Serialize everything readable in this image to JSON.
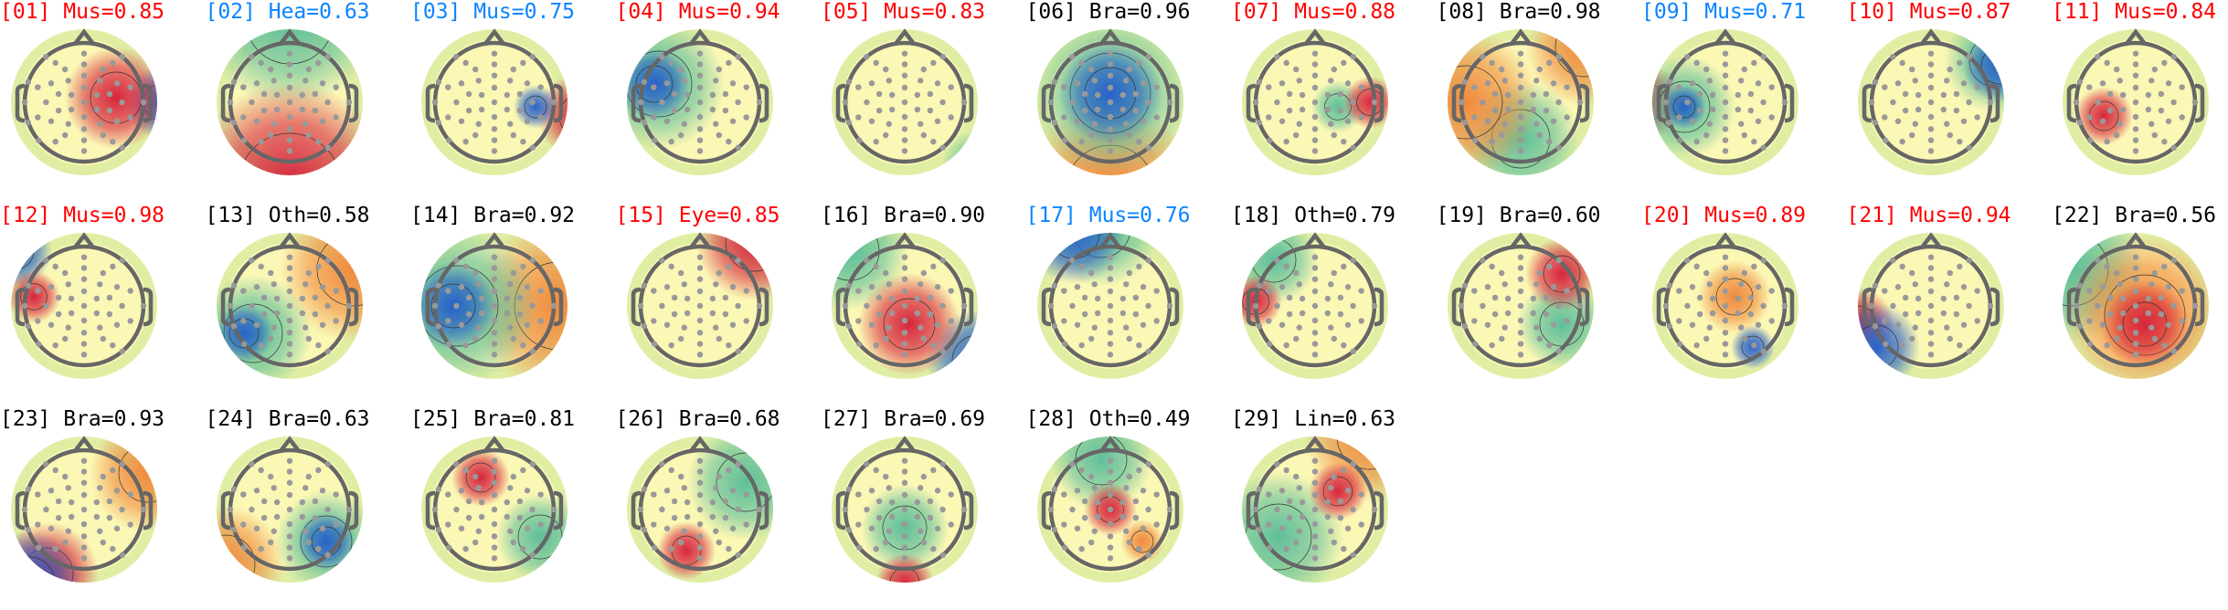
{
  "colors": {
    "red": "#ff0000",
    "blue": "#0a84ff",
    "black": "#000000"
  },
  "chart_data": {
    "type": "heatmap",
    "components": [
      {
        "title": "[01] Mus=0.85",
        "color": "red"
      },
      {
        "title": "[02] Hea=0.63",
        "color": "blue"
      },
      {
        "title": "[03] Mus=0.75",
        "color": "blue"
      },
      {
        "title": "[04] Mus=0.94",
        "color": "red"
      },
      {
        "title": "[05] Mus=0.83",
        "color": "red"
      },
      {
        "title": "[06] Bra=0.96",
        "color": "black"
      },
      {
        "title": "[07] Mus=0.88",
        "color": "red"
      },
      {
        "title": "[08] Bra=0.98",
        "color": "black"
      },
      {
        "title": "[09] Mus=0.71",
        "color": "blue"
      },
      {
        "title": "[10] Mus=0.87",
        "color": "red"
      },
      {
        "title": "[11] Mus=0.84",
        "color": "red"
      },
      {
        "title": "[12] Mus=0.98",
        "color": "red"
      },
      {
        "title": "[13] Oth=0.58",
        "color": "black"
      },
      {
        "title": "[14] Bra=0.92",
        "color": "black"
      },
      {
        "title": "[15] Eye=0.85",
        "color": "red"
      },
      {
        "title": "[16] Bra=0.90",
        "color": "black"
      },
      {
        "title": "[17] Mus=0.76",
        "color": "blue"
      },
      {
        "title": "[18] Oth=0.79",
        "color": "black"
      },
      {
        "title": "[19] Bra=0.60",
        "color": "black"
      },
      {
        "title": "[20] Mus=0.89",
        "color": "red"
      },
      {
        "title": "[21] Mus=0.94",
        "color": "red"
      },
      {
        "title": "[22] Bra=0.56",
        "color": "black"
      },
      {
        "title": "[23] Bra=0.93",
        "color": "black"
      },
      {
        "title": "[24] Bra=0.63",
        "color": "black"
      },
      {
        "title": "[25] Bra=0.81",
        "color": "black"
      },
      {
        "title": "[26] Bra=0.68",
        "color": "black"
      },
      {
        "title": "[27] Bra=0.69",
        "color": "black"
      },
      {
        "title": "[28] Oth=0.49",
        "color": "black"
      },
      {
        "title": "[29] Lin=0.63",
        "color": "black"
      }
    ]
  }
}
